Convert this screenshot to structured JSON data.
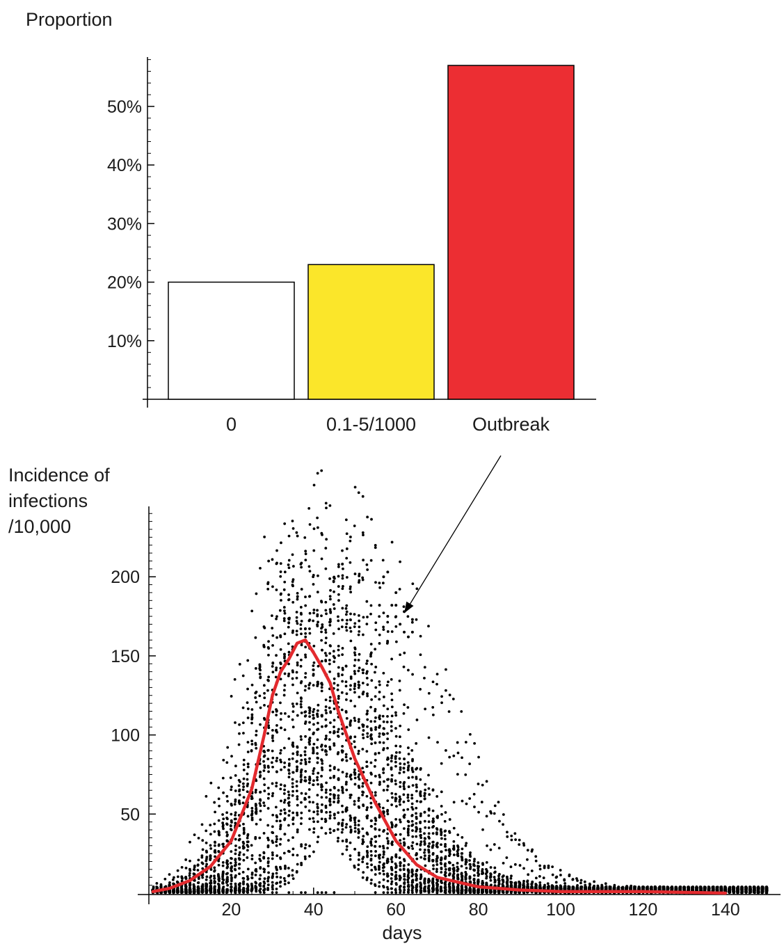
{
  "chart_data": [
    {
      "type": "bar",
      "ylabel": "Proportion",
      "categories": [
        "0",
        "0.1-5/1000",
        "Outbreak"
      ],
      "values": [
        20,
        23,
        57
      ],
      "value_unit": "%",
      "colors": [
        "#ffffff",
        "#fbe62a",
        "#ec2e33"
      ],
      "ylim": [
        0,
        60
      ],
      "yticks": [
        10,
        20,
        30,
        40,
        50
      ],
      "ytick_labels": [
        "10%",
        "20%",
        "30%",
        "40%",
        "50%"
      ],
      "grid": false,
      "legend": "none"
    },
    {
      "type": "scatter",
      "ylabel_lines": [
        "Incidence of",
        "infections",
        "/10,000"
      ],
      "xlabel": "days",
      "xlim": [
        0,
        152
      ],
      "ylim": [
        0,
        245
      ],
      "xticks": [
        20,
        40,
        60,
        80,
        100,
        120,
        140
      ],
      "xtick_labels": [
        "20",
        "40",
        "60",
        "80",
        "100",
        "120",
        "140"
      ],
      "yticks": [
        50,
        100,
        150,
        200
      ],
      "ytick_labels": [
        "50",
        "100",
        "150",
        "200"
      ],
      "grid": false,
      "legend": "none",
      "point_color": "#000000",
      "mean_color": "#e32a2e",
      "mean_x": [
        1,
        5,
        10,
        15,
        20,
        25,
        28,
        30,
        32,
        34,
        36,
        38,
        40,
        42,
        44,
        46,
        48,
        50,
        55,
        60,
        65,
        70,
        80,
        90,
        100,
        120,
        140
      ],
      "mean_y": [
        1,
        3,
        8,
        17,
        33,
        66,
        100,
        125,
        140,
        148,
        158,
        160,
        152,
        143,
        133,
        115,
        100,
        85,
        57,
        33,
        18,
        10,
        4,
        2,
        1,
        1,
        0
      ],
      "outbreak_points": {
        "x": [
          56,
          58,
          60,
          62,
          64,
          57,
          59,
          61,
          63,
          58,
          60,
          62,
          64
        ],
        "y": [
          182,
          203,
          182,
          178,
          173,
          200,
          182,
          170,
          162,
          175,
          190,
          165,
          165
        ]
      },
      "annotation_arrow": {
        "from_bar": "Outbreak",
        "to": [
          62,
          177
        ]
      }
    }
  ]
}
